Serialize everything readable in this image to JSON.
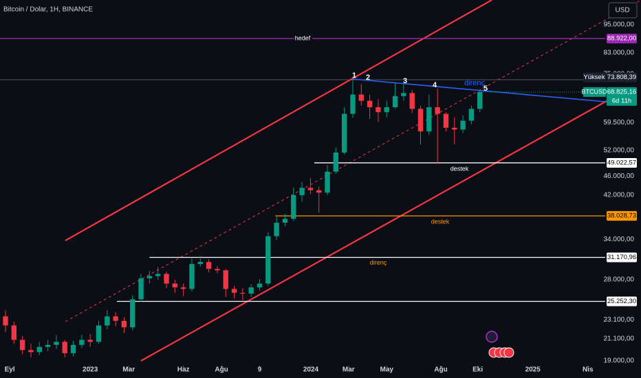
{
  "chart_data": {
    "type": "candlestick",
    "title": "Bitcoin / Dolar, 1H, BINANCE",
    "currency": "USD",
    "log_scale": true,
    "grid": false,
    "up_color": "#089981",
    "down_color": "#f23645",
    "xlim": [
      -21.3,
      121.6
    ],
    "xticks": [
      {
        "value": -19,
        "label": "Eyl"
      },
      {
        "value": 0,
        "label": "2023"
      },
      {
        "value": 9.1,
        "label": "Mar"
      },
      {
        "value": 22,
        "label": "Haz"
      },
      {
        "value": 31,
        "label": "Ağu"
      },
      {
        "value": 40,
        "label": "9"
      },
      {
        "value": 52.1,
        "label": "2024"
      },
      {
        "value": 61,
        "label": "Mar"
      },
      {
        "value": 70,
        "label": "May"
      },
      {
        "value": 82.8,
        "label": "Ağu"
      },
      {
        "value": 91.5,
        "label": "Eki"
      },
      {
        "value": 104.5,
        "label": "2025"
      },
      {
        "value": 117.5,
        "label": "Nis"
      }
    ],
    "ylim": [
      18560,
      106950
    ],
    "yticks": [
      {
        "value": 95000,
        "label": "95.000,00"
      },
      {
        "value": 83000,
        "label": "83.000,00"
      },
      {
        "value": 75000,
        "label": "75.000,00"
      },
      {
        "value": 59500,
        "label": "59.500,00"
      },
      {
        "value": 52000,
        "label": "52.000,00"
      },
      {
        "value": 46000,
        "label": "46.000,00"
      },
      {
        "value": 42000,
        "label": "42.000,00"
      },
      {
        "value": 34000,
        "label": "34.000,00"
      },
      {
        "value": 28000,
        "label": "28.000,00"
      },
      {
        "value": 23100,
        "label": "23.100,00"
      },
      {
        "value": 21100,
        "label": "21.100,00"
      },
      {
        "value": 19000,
        "label": "19.000,00"
      }
    ],
    "x": [
      -20,
      -18,
      -16,
      -14,
      -12,
      -10,
      -8,
      -6,
      -4,
      -2,
      0,
      2,
      4,
      6,
      8,
      10,
      12,
      14,
      16,
      18,
      20,
      22,
      24,
      26,
      28,
      30,
      32,
      34,
      36,
      38,
      40,
      42,
      44,
      46,
      48,
      50,
      52,
      54,
      56,
      58,
      60,
      62,
      64,
      66,
      68,
      70,
      72,
      74,
      76,
      78,
      80,
      82,
      84,
      86,
      88,
      90,
      92
    ],
    "open": [
      23500,
      22500,
      21000,
      20000,
      19800,
      20300,
      20500,
      20800,
      19700,
      20500,
      21000,
      20800,
      22500,
      23500,
      23000,
      22300,
      25500,
      28200,
      28500,
      28800,
      27500,
      27000,
      26800,
      30200,
      30500,
      29500,
      29300,
      26800,
      26300,
      26200,
      27000,
      27500,
      34500,
      36800,
      37500,
      42000,
      43500,
      43000,
      42500,
      47000,
      51500,
      62000,
      68000,
      66000,
      64000,
      62500,
      64000,
      67500,
      68500,
      63500,
      57000,
      64000,
      62000,
      58000,
      57500,
      60000,
      63500
    ],
    "high": [
      24200,
      22900,
      21400,
      20600,
      20800,
      21000,
      21500,
      21000,
      20900,
      21500,
      21600,
      23000,
      24200,
      24000,
      23400,
      26000,
      28800,
      29200,
      29800,
      29100,
      28000,
      27500,
      31000,
      31400,
      30900,
      29900,
      29500,
      27200,
      26900,
      27400,
      28100,
      35200,
      37800,
      38400,
      43500,
      44700,
      45600,
      43800,
      48500,
      52800,
      64000,
      73800,
      71500,
      68000,
      66500,
      66000,
      71900,
      71500,
      69500,
      64500,
      68000,
      70000,
      62500,
      61000,
      61500,
      64500,
      69500
    ],
    "low": [
      21800,
      20600,
      19600,
      19300,
      19500,
      19900,
      20100,
      19300,
      19400,
      20200,
      20300,
      20600,
      22100,
      22400,
      21700,
      22000,
      25200,
      27500,
      28000,
      26900,
      26300,
      25900,
      26500,
      29800,
      29000,
      28900,
      25800,
      25600,
      25400,
      25800,
      26600,
      27200,
      33900,
      36200,
      37100,
      40700,
      42200,
      38600,
      42000,
      46500,
      51000,
      60800,
      64500,
      60500,
      59600,
      61000,
      63500,
      66000,
      62200,
      53500,
      56000,
      49000,
      57000,
      53600,
      56500,
      59000,
      62500
    ],
    "close": [
      22500,
      21000,
      20000,
      19800,
      20300,
      20500,
      20800,
      19700,
      20500,
      21000,
      20800,
      22500,
      23500,
      23000,
      22300,
      25500,
      28200,
      28500,
      28800,
      27500,
      27000,
      26800,
      30200,
      30500,
      29500,
      29300,
      26800,
      26300,
      26200,
      27000,
      27500,
      34500,
      36800,
      37500,
      42000,
      43500,
      43000,
      42500,
      47000,
      51500,
      62000,
      68000,
      66000,
      64000,
      62500,
      64000,
      67500,
      68500,
      63500,
      57000,
      64000,
      62000,
      58000,
      57500,
      60000,
      63500,
      68825.16
    ],
    "levels": [
      {
        "value": 88922,
        "label": "88.922,00",
        "text": "hedef",
        "color": "#9c27b0",
        "text_color": "#ffffff",
        "from": -21.3
      },
      {
        "value": 49022.57,
        "label": "49.022,57",
        "text": "destek",
        "color": "#ffffff",
        "text_color": "#ffffff",
        "from": 52.9
      },
      {
        "value": 38028.73,
        "label": "38.028,73",
        "text": "destek",
        "color": "#ff9800",
        "text_color": "#ff9800",
        "from": 43.7
      },
      {
        "value": 31170.96,
        "label": "31.170,96",
        "text": "direnç",
        "color": "#ffffff",
        "text_color": "#ff9800",
        "from": 14
      },
      {
        "value": 25252.3,
        "label": "25.252,30",
        "color": "#ffffff",
        "from": 6.3
      }
    ],
    "high_marker": {
      "name": "Yüksek",
      "value": 73808.39,
      "label": "73.808,39"
    },
    "last_price": {
      "symbol": "BTCUSD",
      "value": 68825.16,
      "label": "68.825,16",
      "countdown": "6d 11h"
    },
    "annotations": [
      "1",
      "2",
      "3",
      "4",
      "5"
    ],
    "resistance_label": "direnç"
  }
}
